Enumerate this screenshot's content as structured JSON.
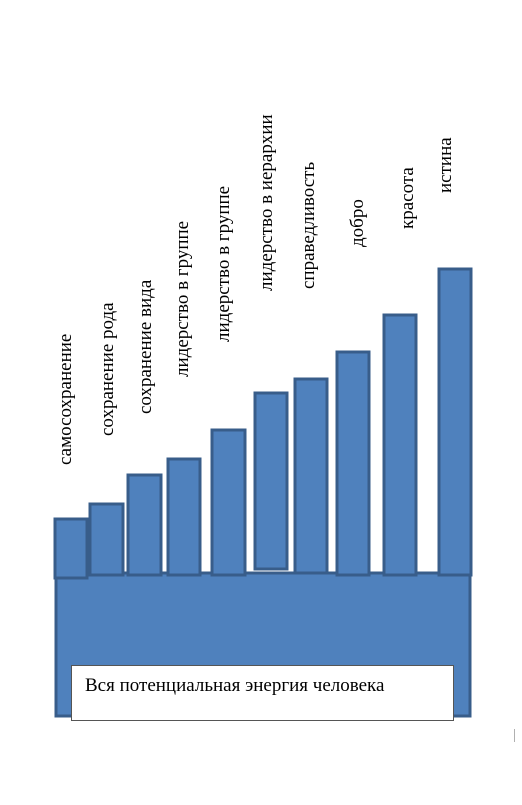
{
  "diagram": {
    "caption": "Вся потенциальная энергия человека",
    "colors": {
      "fill": "#4f81bd",
      "stroke": "#385d8a"
    },
    "levels": [
      {
        "label": "самосохранение"
      },
      {
        "label": "сохранение рода"
      },
      {
        "label": "сохранение вида"
      },
      {
        "label": "лидерство в группе"
      },
      {
        "label": "лидерство в группе"
      },
      {
        "label": "лидерство в иерархии"
      },
      {
        "label": "справедливость"
      },
      {
        "label": "добро"
      },
      {
        "label": "красота"
      },
      {
        "label": "истина"
      }
    ]
  }
}
